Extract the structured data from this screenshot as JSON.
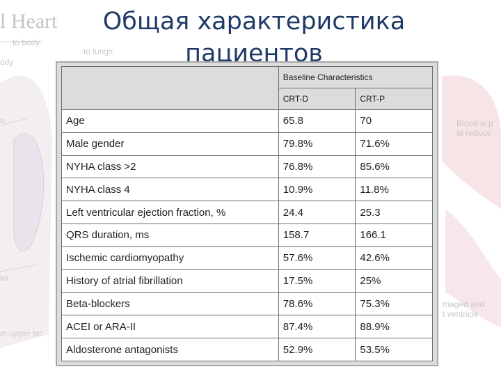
{
  "title": "Общая характеристика пациентов",
  "background_labels": [
    "l Heart",
    "to body",
    "to lungs",
    "ody",
    "a",
    "va",
    "m upper bc",
    "Blood is p",
    "at reduce",
    "maged and",
    "t ventricle"
  ],
  "table": {
    "caption": "Baseline Characteristics",
    "columns": [
      "CRT-D",
      "CRT-P"
    ],
    "rows": [
      [
        "Age",
        "65.8",
        "70"
      ],
      [
        "Male gender",
        "79.8%",
        "71.6%"
      ],
      [
        "NYHA class >2",
        "76.8%",
        "85.6%"
      ],
      [
        "NYHA class 4",
        "10.9%",
        "11.8%"
      ],
      [
        "Left ventricular ejection fraction, %",
        "24.4",
        "25.3"
      ],
      [
        "QRS duration, ms",
        "158.7",
        "166.1"
      ],
      [
        "Ischemic cardiomyopathy",
        "57.6%",
        "42.6%"
      ],
      [
        "History of atrial fibrillation",
        "17.5%",
        "25%"
      ],
      [
        "Beta-blockers",
        "78.6%",
        "75.3%"
      ],
      [
        "ACEI or ARA-II",
        "87.4%",
        "88.9%"
      ],
      [
        "Aldosterone antagonists",
        "52.9%",
        "53.5%"
      ]
    ]
  }
}
